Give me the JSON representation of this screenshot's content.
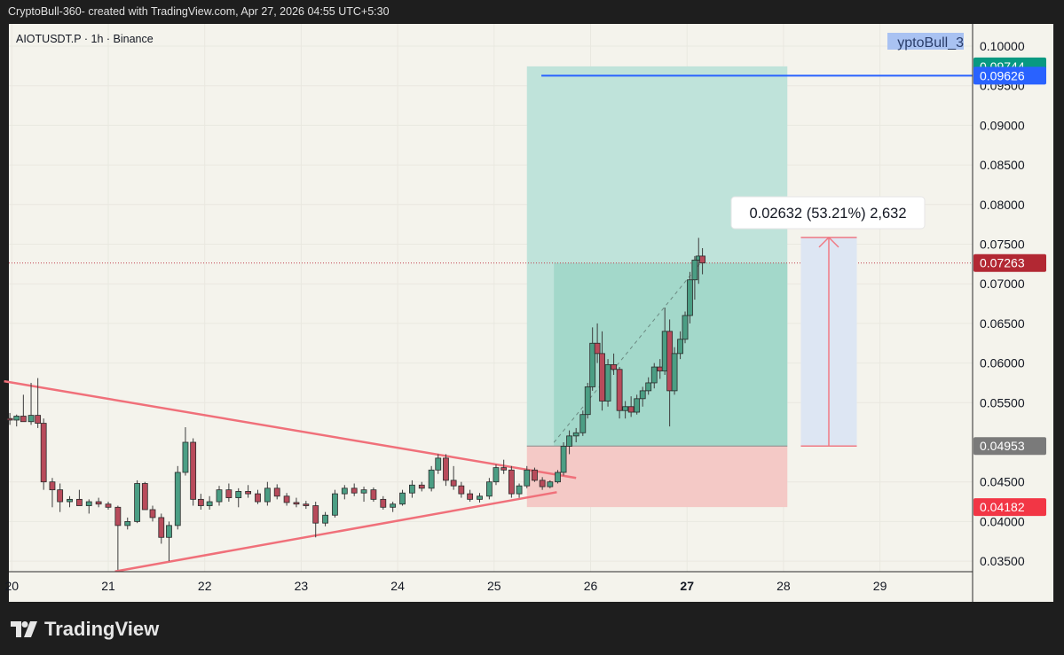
{
  "header": {
    "text": "CryptoBull-360- created with TradingView.com, Apr 27, 2026 04:55 UTC+5:30"
  },
  "symbol_legend": "AIOTUSDT.P · 1h · Binance",
  "watermark_selected_text": "yptoBull_3",
  "footer": {
    "brand": "TradingView",
    "logo_icon": "tradingview-logo-icon"
  },
  "colors": {
    "up": "#4b9e84",
    "down": "#b84b5b",
    "trendline": "#f0707a",
    "target_zone": "#bfe3da",
    "profit_zone": "#a3d8ca",
    "stop_zone": "#f4c9c6",
    "horizontal_line": "#2962ff",
    "measure_fill": "#dde6f3"
  },
  "chart_data": {
    "type": "candlestick",
    "title": "",
    "xlabel": "",
    "ylabel": "",
    "x_ticks": [
      "20",
      "21",
      "22",
      "23",
      "24",
      "25",
      "26",
      "27",
      "28",
      "29"
    ],
    "x_range_days": [
      19.92,
      29.9
    ],
    "y_ticks": [
      "0.10000",
      "0.09500",
      "0.09000",
      "0.08500",
      "0.08000",
      "0.07500",
      "0.07000",
      "0.06500",
      "0.06000",
      "0.05500",
      "0.04500",
      "0.04000",
      "0.03500"
    ],
    "ylim": [
      0.0338,
      0.1027
    ],
    "grid": true,
    "candles_t_o_h_l_c": [
      [
        19.98,
        0.053,
        0.0537,
        0.0522,
        0.0528
      ],
      [
        20.05,
        0.0528,
        0.0535,
        0.052,
        0.0533
      ],
      [
        20.12,
        0.0533,
        0.056,
        0.0528,
        0.0526
      ],
      [
        20.2,
        0.0526,
        0.0575,
        0.0522,
        0.0534
      ],
      [
        20.27,
        0.0534,
        0.0581,
        0.0518,
        0.0524
      ],
      [
        20.33,
        0.0524,
        0.053,
        0.044,
        0.045
      ],
      [
        20.42,
        0.045,
        0.0455,
        0.0418,
        0.044
      ],
      [
        20.5,
        0.044,
        0.0448,
        0.0412,
        0.0425
      ],
      [
        20.6,
        0.0425,
        0.0432,
        0.0418,
        0.0428
      ],
      [
        20.7,
        0.0428,
        0.044,
        0.042,
        0.042
      ],
      [
        20.8,
        0.042,
        0.0428,
        0.041,
        0.0425
      ],
      [
        20.9,
        0.0425,
        0.043,
        0.0418,
        0.0422
      ],
      [
        21.0,
        0.0422,
        0.0425,
        0.0415,
        0.0418
      ],
      [
        21.1,
        0.0418,
        0.042,
        0.0339,
        0.0395
      ],
      [
        21.2,
        0.0395,
        0.0405,
        0.039,
        0.04
      ],
      [
        21.3,
        0.04,
        0.0452,
        0.0398,
        0.0448
      ],
      [
        21.38,
        0.0448,
        0.045,
        0.042,
        0.0415
      ],
      [
        21.46,
        0.0415,
        0.042,
        0.04,
        0.0405
      ],
      [
        21.55,
        0.0405,
        0.041,
        0.0372,
        0.038
      ],
      [
        21.63,
        0.038,
        0.04,
        0.035,
        0.0395
      ],
      [
        21.72,
        0.0395,
        0.047,
        0.039,
        0.0462
      ],
      [
        21.8,
        0.0462,
        0.0519,
        0.0458,
        0.05
      ],
      [
        21.88,
        0.05,
        0.0505,
        0.042,
        0.0428
      ],
      [
        21.96,
        0.0428,
        0.0435,
        0.0415,
        0.042
      ],
      [
        22.05,
        0.042,
        0.0432,
        0.0415,
        0.0425
      ],
      [
        22.15,
        0.0425,
        0.0445,
        0.042,
        0.044
      ],
      [
        22.25,
        0.044,
        0.0448,
        0.0425,
        0.043
      ],
      [
        22.35,
        0.043,
        0.0442,
        0.0418,
        0.0438
      ],
      [
        22.45,
        0.0438,
        0.0446,
        0.043,
        0.0435
      ],
      [
        22.55,
        0.0435,
        0.044,
        0.0422,
        0.0425
      ],
      [
        22.65,
        0.0425,
        0.045,
        0.042,
        0.0442
      ],
      [
        22.75,
        0.0442,
        0.0447,
        0.0428,
        0.0432
      ],
      [
        22.85,
        0.0432,
        0.0436,
        0.042,
        0.0424
      ],
      [
        22.95,
        0.0424,
        0.043,
        0.0418,
        0.0422
      ],
      [
        23.05,
        0.0422,
        0.0426,
        0.0416,
        0.042
      ],
      [
        23.15,
        0.042,
        0.0425,
        0.038,
        0.0398
      ],
      [
        23.25,
        0.0398,
        0.0412,
        0.0394,
        0.0408
      ],
      [
        23.35,
        0.0408,
        0.044,
        0.0405,
        0.0435
      ],
      [
        23.45,
        0.0435,
        0.0446,
        0.0428,
        0.0442
      ],
      [
        23.55,
        0.0442,
        0.0448,
        0.0432,
        0.0436
      ],
      [
        23.65,
        0.0436,
        0.0444,
        0.0425,
        0.044
      ],
      [
        23.75,
        0.044,
        0.0443,
        0.0425,
        0.0428
      ],
      [
        23.85,
        0.0428,
        0.0432,
        0.0415,
        0.0418
      ],
      [
        23.95,
        0.0418,
        0.0425,
        0.0412,
        0.0422
      ],
      [
        24.05,
        0.0422,
        0.044,
        0.042,
        0.0436
      ],
      [
        24.15,
        0.0436,
        0.0452,
        0.043,
        0.0446
      ],
      [
        24.25,
        0.0446,
        0.045,
        0.0438,
        0.0442
      ],
      [
        24.35,
        0.0442,
        0.047,
        0.0438,
        0.0465
      ],
      [
        24.42,
        0.0465,
        0.0485,
        0.046,
        0.048
      ],
      [
        24.5,
        0.048,
        0.0485,
        0.0445,
        0.0452
      ],
      [
        24.58,
        0.0452,
        0.047,
        0.044,
        0.0445
      ],
      [
        24.66,
        0.0445,
        0.045,
        0.043,
        0.0435
      ],
      [
        24.75,
        0.0435,
        0.044,
        0.0425,
        0.0428
      ],
      [
        24.85,
        0.0428,
        0.0436,
        0.0424,
        0.0432
      ],
      [
        24.95,
        0.0432,
        0.0455,
        0.0428,
        0.045
      ],
      [
        25.02,
        0.045,
        0.0472,
        0.0446,
        0.0468
      ],
      [
        25.1,
        0.0468,
        0.0478,
        0.046,
        0.0465
      ],
      [
        25.18,
        0.0465,
        0.047,
        0.043,
        0.0435
      ],
      [
        25.26,
        0.0435,
        0.0448,
        0.043,
        0.0445
      ],
      [
        25.34,
        0.0445,
        0.047,
        0.0442,
        0.0465
      ],
      [
        25.42,
        0.0465,
        0.0468,
        0.045,
        0.0452
      ],
      [
        25.5,
        0.0452,
        0.0456,
        0.044,
        0.0444
      ],
      [
        25.58,
        0.0444,
        0.0452,
        0.0442,
        0.045
      ],
      [
        25.66,
        0.045,
        0.0465,
        0.0448,
        0.0462
      ],
      [
        25.72,
        0.0462,
        0.05,
        0.0458,
        0.0495
      ],
      [
        25.78,
        0.0495,
        0.0515,
        0.0485,
        0.0508
      ],
      [
        25.85,
        0.0508,
        0.0518,
        0.05,
        0.0512
      ],
      [
        25.92,
        0.0512,
        0.054,
        0.0508,
        0.0535
      ],
      [
        25.97,
        0.0535,
        0.0575,
        0.053,
        0.057
      ],
      [
        26.02,
        0.057,
        0.0645,
        0.0565,
        0.0625
      ],
      [
        26.07,
        0.0625,
        0.065,
        0.06,
        0.0612
      ],
      [
        26.12,
        0.0612,
        0.064,
        0.054,
        0.0552
      ],
      [
        26.18,
        0.0552,
        0.0605,
        0.0545,
        0.0598
      ],
      [
        26.24,
        0.0598,
        0.0612,
        0.0585,
        0.0592
      ],
      [
        26.3,
        0.0592,
        0.0595,
        0.053,
        0.054
      ],
      [
        26.36,
        0.054,
        0.0552,
        0.053,
        0.0545
      ],
      [
        26.42,
        0.0545,
        0.0558,
        0.0532,
        0.0538
      ],
      [
        26.48,
        0.0538,
        0.056,
        0.0535,
        0.0555
      ],
      [
        26.54,
        0.0555,
        0.057,
        0.0545,
        0.0565
      ],
      [
        26.6,
        0.0565,
        0.0582,
        0.056,
        0.0575
      ],
      [
        26.66,
        0.0575,
        0.06,
        0.0568,
        0.0595
      ],
      [
        26.72,
        0.0595,
        0.0605,
        0.058,
        0.059
      ],
      [
        26.77,
        0.059,
        0.067,
        0.0585,
        0.064
      ],
      [
        26.82,
        0.064,
        0.0655,
        0.052,
        0.0565
      ],
      [
        26.87,
        0.0565,
        0.062,
        0.056,
        0.0612
      ],
      [
        26.93,
        0.0612,
        0.064,
        0.0605,
        0.063
      ],
      [
        26.98,
        0.063,
        0.0665,
        0.0625,
        0.066
      ],
      [
        27.03,
        0.066,
        0.0715,
        0.065,
        0.0705
      ],
      [
        27.08,
        0.0705,
        0.0735,
        0.068,
        0.073
      ],
      [
        27.12,
        0.073,
        0.0758,
        0.07,
        0.0735
      ],
      [
        27.16,
        0.0735,
        0.0745,
        0.0712,
        0.07263
      ]
    ],
    "trendlines": [
      {
        "name": "descending-resistance",
        "from": [
          19.92,
          0.0577
        ],
        "to": [
          25.85,
          0.0455
        ]
      },
      {
        "name": "ascending-support",
        "from": [
          21.07,
          0.0337
        ],
        "to": [
          25.65,
          0.0437
        ]
      }
    ],
    "long_position": {
      "start_day": 25.34,
      "end_day": 28.04,
      "entry": 0.04953,
      "target": 0.09744,
      "stop": 0.04182,
      "current": 0.07263,
      "fill_start_day": 25.62
    },
    "horizontal_ray": {
      "price": 0.09626,
      "start_day": 25.49
    },
    "measure": {
      "start_day": 28.18,
      "end_day": 28.76,
      "from": 0.04953,
      "to": 0.07585,
      "label": "0.02632 (53.21%) 2,632"
    },
    "price_tags": [
      {
        "value": "0.09744",
        "color": "#089981"
      },
      {
        "value": "0.09626",
        "color": "#2962ff"
      },
      {
        "value": "0.07263",
        "color": "#b22833"
      },
      {
        "value": "0.04953",
        "color": "#7a7a7a"
      },
      {
        "value": "0.04182",
        "color": "#f23645"
      }
    ]
  }
}
